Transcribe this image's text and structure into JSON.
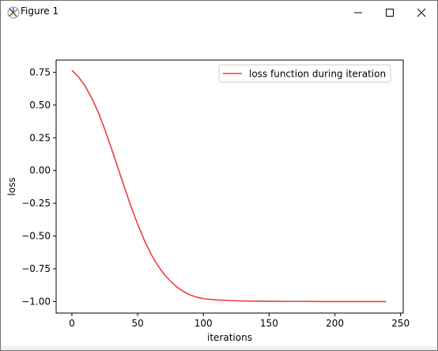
{
  "window": {
    "title": "Figure 1",
    "controls": {
      "minimize_icon": "minimize-icon",
      "maximize_icon": "maximize-icon",
      "close_icon": "close-icon"
    }
  },
  "chart_data": {
    "type": "line",
    "title": "",
    "xlabel": "iterations",
    "ylabel": "loss",
    "xlim": [
      -12,
      252
    ],
    "ylim": [
      -1.088,
      0.843
    ],
    "xticks": [
      0,
      50,
      100,
      150,
      200,
      250
    ],
    "xtick_labels": [
      "0",
      "50",
      "100",
      "150",
      "200",
      "250"
    ],
    "yticks": [
      0.75,
      0.5,
      0.25,
      0.0,
      -0.25,
      -0.5,
      -0.75,
      -1.0
    ],
    "ytick_labels": [
      "0.75",
      "0.50",
      "0.25",
      "0.00",
      "−0.25",
      "−0.50",
      "−0.75",
      "−1.00"
    ],
    "grid": false,
    "legend_position": "top-right",
    "series": [
      {
        "name": "loss function during iteration",
        "color": "#f03c3c",
        "x": [
          0,
          5,
          10,
          15,
          20,
          25,
          30,
          35,
          40,
          45,
          50,
          55,
          60,
          65,
          70,
          75,
          80,
          85,
          90,
          95,
          100,
          110,
          120,
          130,
          140,
          150,
          160,
          170,
          180,
          190,
          200,
          210,
          220,
          230,
          239
        ],
        "y": [
          0.765,
          0.715,
          0.645,
          0.555,
          0.445,
          0.315,
          0.17,
          0.02,
          -0.13,
          -0.275,
          -0.41,
          -0.53,
          -0.635,
          -0.72,
          -0.79,
          -0.845,
          -0.89,
          -0.925,
          -0.95,
          -0.967,
          -0.978,
          -0.988,
          -0.993,
          -0.996,
          -0.997,
          -0.998,
          -0.999,
          -0.999,
          -0.999,
          -1.0,
          -1.0,
          -1.0,
          -1.0,
          -1.0,
          -1.0
        ]
      }
    ]
  }
}
